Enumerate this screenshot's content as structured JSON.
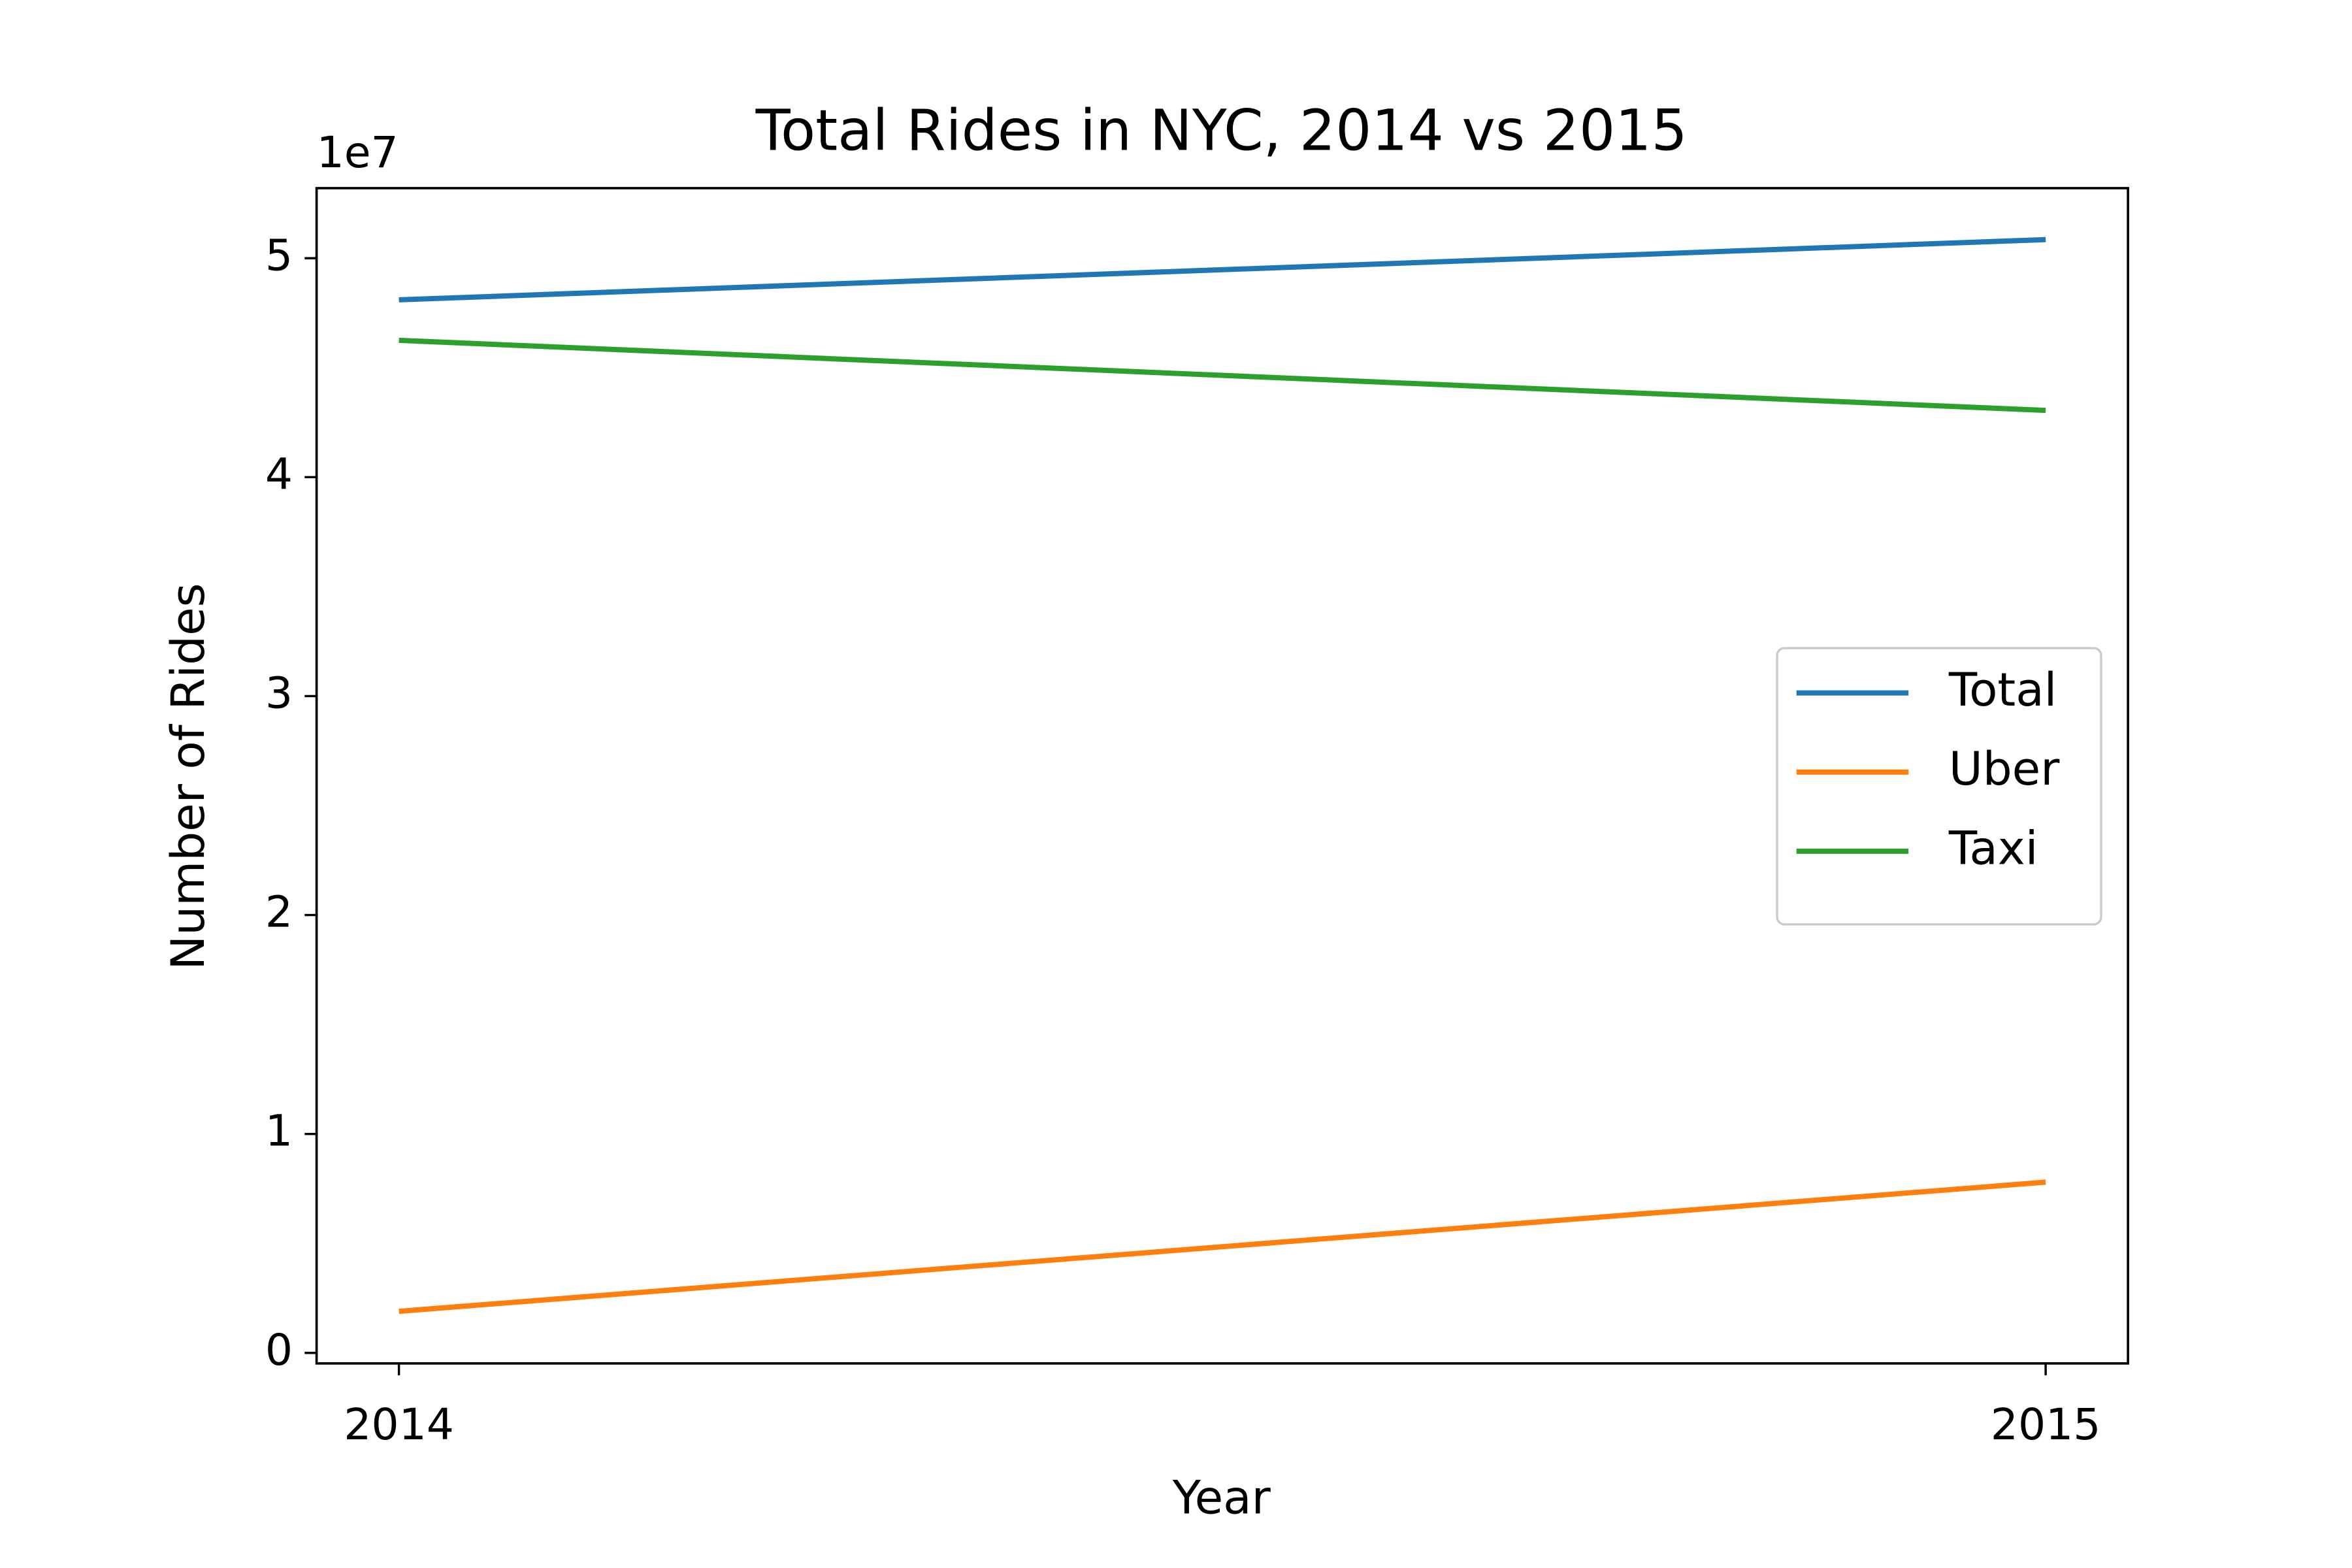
{
  "chart_data": {
    "type": "line",
    "title": "Total Rides in NYC, 2014 vs 2015",
    "x_label": "Year",
    "y_label": "Number of Rides",
    "y_offset_label": "1e7",
    "x": [
      2014,
      2015
    ],
    "series": [
      {
        "name": "Total",
        "color": "#1f77b4",
        "values": [
          48100000,
          50850000
        ]
      },
      {
        "name": "Uber",
        "color": "#ff7f0e",
        "values": [
          1900000,
          7800000
        ]
      },
      {
        "name": "Taxi",
        "color": "#2ca02c",
        "values": [
          46250000,
          43050000
        ]
      }
    ],
    "xlim": [
      2013.95,
      2015.05
    ],
    "xticks": [
      2014,
      2015
    ],
    "ylim": [
      -480000,
      53200000
    ],
    "yticks": [
      {
        "value": 0,
        "label": "0"
      },
      {
        "value": 10000000,
        "label": "1"
      },
      {
        "value": 20000000,
        "label": "2"
      },
      {
        "value": 30000000,
        "label": "3"
      },
      {
        "value": 40000000,
        "label": "4"
      },
      {
        "value": 50000000,
        "label": "5"
      }
    ],
    "grid": false,
    "legend_position": "right"
  }
}
